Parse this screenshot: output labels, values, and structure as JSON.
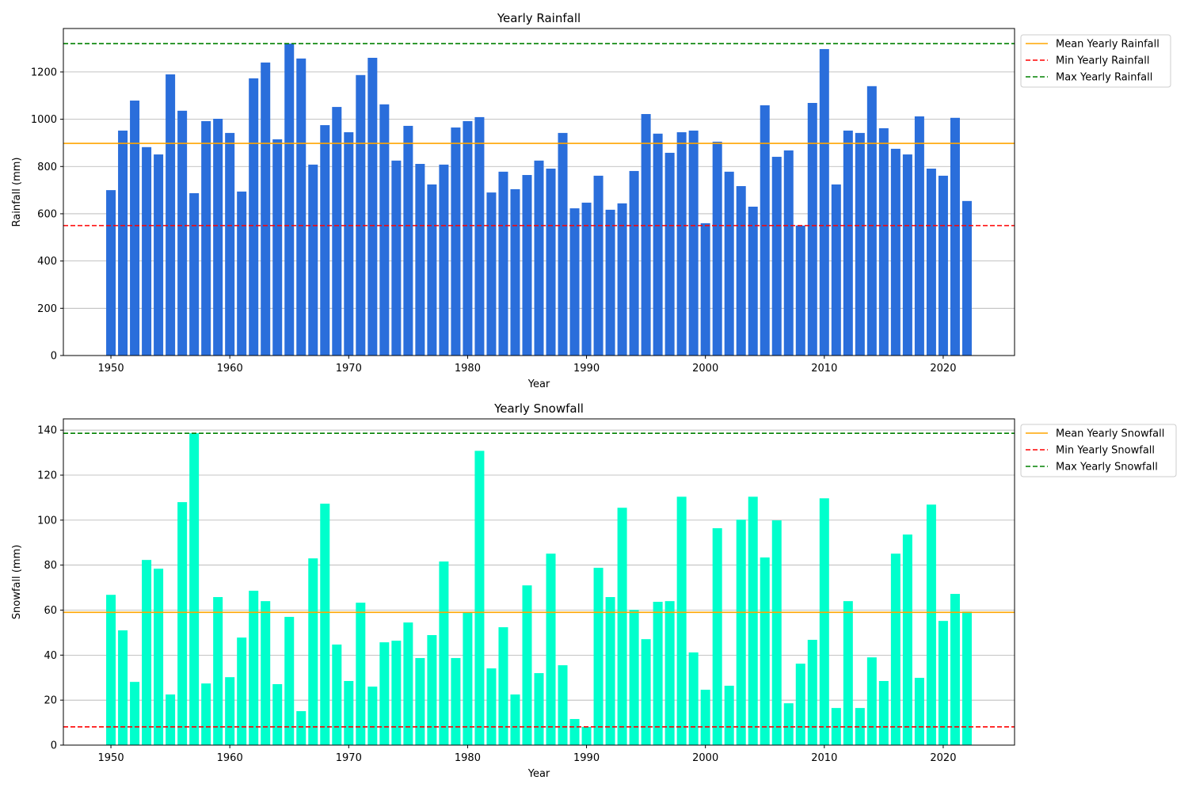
{
  "chart_data": [
    {
      "type": "bar",
      "title": "Yearly Rainfall",
      "xlabel": "Year",
      "ylabel": "Rainfall (mm)",
      "xlim": [
        1946,
        2026
      ],
      "ylim": [
        0,
        1384
      ],
      "xticks": [
        1950,
        1960,
        1970,
        1980,
        1990,
        2000,
        2010,
        2020
      ],
      "yticks": [
        0,
        200,
        400,
        600,
        800,
        1000,
        1200
      ],
      "grid": "y",
      "bar_color": "#2a6edb",
      "x_start": 1950,
      "values": [
        700,
        952,
        1079,
        882,
        851,
        1190,
        1036,
        687,
        992,
        1002,
        942,
        694,
        1173,
        1240,
        915,
        1320,
        1257,
        808,
        975,
        1052,
        945,
        1187,
        1260,
        1063,
        825,
        972,
        811,
        724,
        808,
        965,
        992,
        1009,
        690,
        778,
        704,
        764,
        825,
        791,
        942,
        623,
        647,
        761,
        617,
        644,
        781,
        1022,
        939,
        858,
        945,
        952,
        560,
        905,
        778,
        717,
        630,
        1059,
        841,
        868,
        550,
        1069,
        1297,
        724,
        952,
        942,
        1140,
        962,
        875,
        851,
        1012,
        791,
        761,
        1006,
        654
      ],
      "reference_lines": [
        {
          "name": "Mean Yearly Rainfall",
          "value": 898,
          "color": "#ffa500",
          "style": "solid"
        },
        {
          "name": "Min Yearly Rainfall",
          "value": 550,
          "color": "#ff0000",
          "style": "dashed"
        },
        {
          "name": "Max Yearly Rainfall",
          "value": 1320,
          "color": "#008000",
          "style": "dashed"
        }
      ],
      "legend": "outside-top-right"
    },
    {
      "type": "bar",
      "title": "Yearly Snowfall",
      "xlabel": "Year",
      "ylabel": "Snowfall (mm)",
      "xlim": [
        1946,
        2026
      ],
      "ylim": [
        0,
        145
      ],
      "xticks": [
        1950,
        1960,
        1970,
        1980,
        1990,
        2000,
        2010,
        2020
      ],
      "yticks": [
        0,
        20,
        40,
        60,
        80,
        100,
        120,
        140
      ],
      "grid": "y",
      "bar_color": "#00ffcc",
      "x_start": 1950,
      "values": [
        66.8,
        51,
        28.1,
        82.3,
        78.4,
        22.5,
        108,
        138.6,
        27.4,
        65.8,
        30.2,
        47.8,
        68.6,
        64,
        27.1,
        57,
        15.1,
        83,
        107.3,
        44.7,
        28.5,
        63.3,
        26,
        45.7,
        46.4,
        54.5,
        38.7,
        48.9,
        81.6,
        38.7,
        59.1,
        130.8,
        34.1,
        52.4,
        22.5,
        71,
        32,
        85.1,
        35.5,
        11.6,
        8.1,
        78.8,
        65.8,
        105.5,
        60.1,
        47.1,
        63.7,
        64,
        110.4,
        41.2,
        24.6,
        96.4,
        26.4,
        100.2,
        110.4,
        83.4,
        99.9,
        18.6,
        36.2,
        46.8,
        109.7,
        16.5,
        64,
        16.5,
        39,
        28.5,
        85.1,
        93.6,
        29.9,
        106.9,
        55.2,
        67.2,
        59.4
      ],
      "reference_lines": [
        {
          "name": "Mean Yearly Snowfall",
          "value": 59,
          "color": "#ffa500",
          "style": "solid"
        },
        {
          "name": "Min Yearly Snowfall",
          "value": 8.1,
          "color": "#ff0000",
          "style": "dashed"
        },
        {
          "name": "Max Yearly Snowfall",
          "value": 138.6,
          "color": "#008000",
          "style": "dashed"
        }
      ],
      "legend": "outside-top-right"
    }
  ]
}
